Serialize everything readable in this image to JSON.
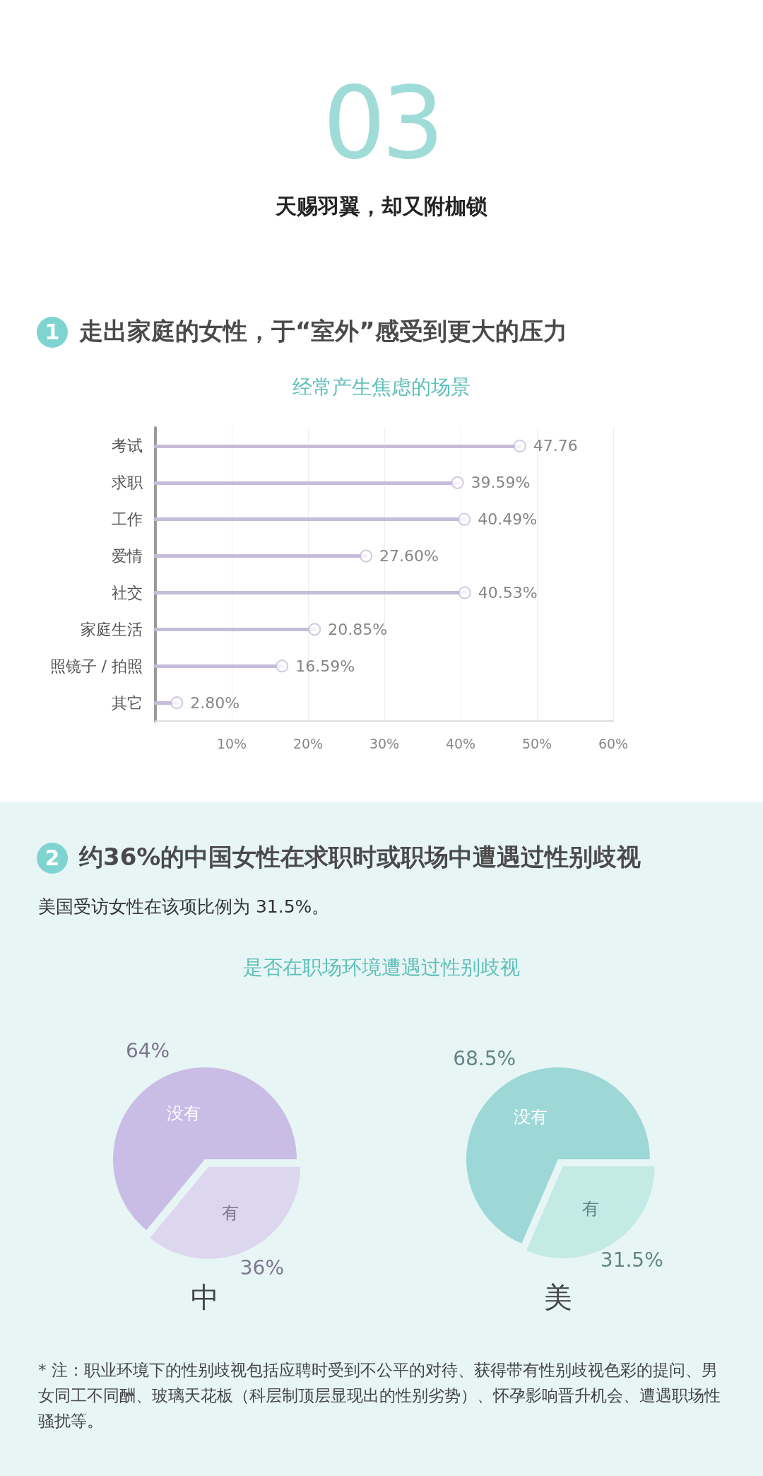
{
  "chart_data": [
    {
      "type": "other",
      "title": "天赐羽翼，却又附枷锁",
      "annotations": [
        "03",
        "1",
        "走出家庭的女性，于“室外”感受到更大的压力"
      ]
    },
    {
      "type": "lollipop",
      "orientation": "horizontal",
      "title": "经常产生焦虑的场景",
      "categories": [
        "考试",
        "求职",
        "工作",
        "爱情",
        "社交",
        "家庭生活",
        "照镜子 / 拍照",
        "其它"
      ],
      "values": [
        47.76,
        39.59,
        40.49,
        27.6,
        40.53,
        20.85,
        16.59,
        2.8
      ],
      "value_labels": [
        "47.76",
        "39.59%",
        "40.49%",
        "27.60%",
        "40.53%",
        "20.85%",
        "16.59%",
        "2.80%"
      ],
      "color": "#c5bcd9",
      "xlim": [
        0,
        60
      ],
      "xticks": [
        {
          "value": 10,
          "label": "10%"
        },
        {
          "value": 20,
          "label": "20%"
        },
        {
          "value": 30,
          "label": "30%"
        },
        {
          "value": 40,
          "label": "40%"
        },
        {
          "value": 50,
          "label": "50%"
        },
        {
          "value": 60,
          "label": "60%"
        }
      ],
      "grid": "x",
      "marker": "circle"
    },
    {
      "type": "other",
      "title": "约36%的中国女性在求职时或职场中遭遇过性别歧视",
      "subtitle": "美国受访女性在该项比例为 31.5%。",
      "annotations": [
        "2",
        "是否在职场环境遭遇过性别歧视"
      ]
    },
    {
      "type": "pie",
      "xlabel": "中",
      "categories": [
        "没有",
        "有"
      ],
      "values": [
        64,
        36
      ],
      "colors": [
        "#c9bde6",
        "#dcd6ef"
      ],
      "value_labels": [
        "64%",
        "36%"
      ]
    },
    {
      "type": "pie",
      "xlabel": "美",
      "categories": [
        "没有",
        "有"
      ],
      "values": [
        68.5,
        31.5
      ],
      "colors": [
        "#9dd8d6",
        "#c4eae6"
      ],
      "value_labels": [
        "68.5%",
        "31.5%"
      ]
    },
    {
      "type": "other",
      "annotations": [
        "* 注：职业环境下的性别歧视包括应聘时受到不公平的对待、获得带有性别歧视色彩的提问、男女同工不同酬、玻璃天花板（科层制顶层显现出的性别劣势）、怀孕影响晋升机会、遭遇职场性骚扰等。"
      ]
    }
  ]
}
